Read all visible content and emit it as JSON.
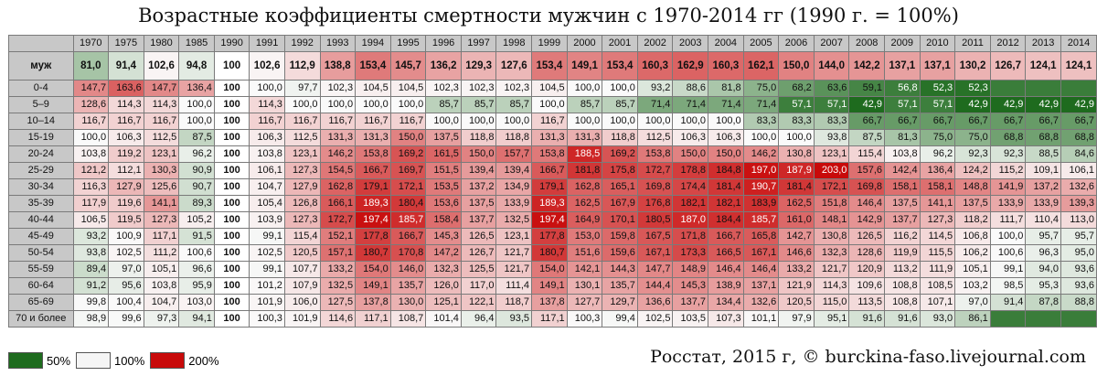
{
  "title": "Возрастные коэффициенты смертности мужчин с 1970-2014 гг (1990 г. = 100%)",
  "source": "Росстат, 2015 г, © burckina-faso.livejournal.com",
  "legend": [
    {
      "label": "50%",
      "color": "#1e6b1e"
    },
    {
      "label": "100%",
      "color": "#f5f5f5"
    },
    {
      "label": "200%",
      "color": "#c80a0a"
    }
  ],
  "chart_data": {
    "type": "heatmap",
    "title": "Возрастные коэффициенты смертности мужчин с 1970-2014 гг (1990 г. = 100%)",
    "color_scale": {
      "low": 50,
      "mid": 100,
      "high": 200
    },
    "years": [
      "1970",
      "1975",
      "1980",
      "1985",
      "1990",
      "1991",
      "1992",
      "1993",
      "1994",
      "1995",
      "1996",
      "1997",
      "1998",
      "1999",
      "2000",
      "2001",
      "2002",
      "2003",
      "2004",
      "2005",
      "2006",
      "2007",
      "2008",
      "2009",
      "2010",
      "2011",
      "2012",
      "2013",
      "2014"
    ],
    "total": {
      "label": "муж",
      "values": [
        "81,0",
        "91,4",
        "102,6",
        "94,8",
        "100",
        "102,6",
        "112,9",
        "138,8",
        "153,4",
        "145,7",
        "136,2",
        "129,3",
        "127,6",
        "153,4",
        "149,1",
        "153,4",
        "160,3",
        "162,9",
        "160,3",
        "162,1",
        "150,0",
        "144,0",
        "142,2",
        "137,1",
        "137,1",
        "130,2",
        "126,7",
        "124,1",
        "124,1"
      ]
    },
    "rows": [
      {
        "label": "0-4",
        "values": [
          "147,7",
          "163,6",
          "147,7",
          "136,4",
          "100",
          "100,0",
          "97,7",
          "102,3",
          "104,5",
          "104,5",
          "102,3",
          "102,3",
          "102,3",
          "104,5",
          "100,0",
          "100,0",
          "93,2",
          "88,6",
          "81,8",
          "75,0",
          "68,2",
          "63,6",
          "59,1",
          "56,8",
          "52,3",
          "52,3",
          "",
          "",
          ""
        ]
      },
      {
        "label": "5–9",
        "values": [
          "128,6",
          "114,3",
          "114,3",
          "100,0",
          "100",
          "114,3",
          "100,0",
          "100,0",
          "100,0",
          "100,0",
          "85,7",
          "85,7",
          "85,7",
          "100,0",
          "85,7",
          "85,7",
          "71,4",
          "71,4",
          "71,4",
          "71,4",
          "57,1",
          "57,1",
          "42,9",
          "57,1",
          "57,1",
          "42,9",
          "42,9",
          "42,9",
          "42,9"
        ]
      },
      {
        "label": "10–14",
        "values": [
          "116,7",
          "116,7",
          "116,7",
          "100,0",
          "100",
          "116,7",
          "116,7",
          "116,7",
          "116,7",
          "116,7",
          "100,0",
          "100,0",
          "100,0",
          "116,7",
          "100,0",
          "100,0",
          "100,0",
          "100,0",
          "100,0",
          "83,3",
          "83,3",
          "83,3",
          "66,7",
          "66,7",
          "66,7",
          "66,7",
          "66,7",
          "66,7",
          "66,7"
        ]
      },
      {
        "label": "15-19",
        "values": [
          "100,0",
          "106,3",
          "112,5",
          "87,5",
          "100",
          "106,3",
          "112,5",
          "131,3",
          "131,3",
          "150,0",
          "137,5",
          "118,8",
          "118,8",
          "131,3",
          "131,3",
          "118,8",
          "112,5",
          "106,3",
          "106,3",
          "100,0",
          "100,0",
          "93,8",
          "87,5",
          "81,3",
          "75,0",
          "75,0",
          "68,8",
          "68,8",
          "68,8"
        ]
      },
      {
        "label": "20-24",
        "values": [
          "103,8",
          "119,2",
          "123,1",
          "96,2",
          "100",
          "103,8",
          "123,1",
          "146,2",
          "153,8",
          "169,2",
          "161,5",
          "150,0",
          "157,7",
          "153,8",
          "188,5",
          "169,2",
          "153,8",
          "150,0",
          "150,0",
          "146,2",
          "130,8",
          "123,1",
          "115,4",
          "103,8",
          "96,2",
          "92,3",
          "92,3",
          "88,5",
          "84,6"
        ]
      },
      {
        "label": "25-29",
        "values": [
          "121,2",
          "112,1",
          "130,3",
          "90,9",
          "100",
          "106,1",
          "127,3",
          "154,5",
          "166,7",
          "169,7",
          "151,5",
          "139,4",
          "139,4",
          "166,7",
          "181,8",
          "175,8",
          "172,7",
          "178,8",
          "184,8",
          "197,0",
          "187,9",
          "203,0",
          "157,6",
          "142,4",
          "136,4",
          "124,2",
          "115,2",
          "109,1",
          "106,1"
        ]
      },
      {
        "label": "30-34",
        "values": [
          "116,3",
          "127,9",
          "125,6",
          "90,7",
          "100",
          "104,7",
          "127,9",
          "162,8",
          "179,1",
          "172,1",
          "153,5",
          "137,2",
          "134,9",
          "179,1",
          "162,8",
          "165,1",
          "169,8",
          "174,4",
          "181,4",
          "190,7",
          "181,4",
          "172,1",
          "169,8",
          "158,1",
          "158,1",
          "148,8",
          "141,9",
          "137,2",
          "132,6"
        ]
      },
      {
        "label": "35-39",
        "values": [
          "117,9",
          "119,6",
          "141,1",
          "89,3",
          "100",
          "105,4",
          "126,8",
          "166,1",
          "189,3",
          "180,4",
          "153,6",
          "137,5",
          "133,9",
          "189,3",
          "162,5",
          "167,9",
          "176,8",
          "182,1",
          "182,1",
          "183,9",
          "162,5",
          "151,8",
          "146,4",
          "137,5",
          "141,1",
          "137,5",
          "133,9",
          "133,9",
          "139,3"
        ]
      },
      {
        "label": "40-44",
        "values": [
          "106,5",
          "119,5",
          "127,3",
          "105,2",
          "100",
          "103,9",
          "127,3",
          "172,7",
          "197,4",
          "185,7",
          "158,4",
          "137,7",
          "132,5",
          "197,4",
          "164,9",
          "170,1",
          "180,5",
          "187,0",
          "184,4",
          "185,7",
          "161,0",
          "148,1",
          "142,9",
          "137,7",
          "127,3",
          "118,2",
          "111,7",
          "110,4",
          "113,0"
        ]
      },
      {
        "label": "45-49",
        "values": [
          "93,2",
          "100,9",
          "117,1",
          "91,5",
          "100",
          "99,1",
          "115,4",
          "152,1",
          "177,8",
          "166,7",
          "145,3",
          "126,5",
          "123,1",
          "177,8",
          "153,0",
          "159,8",
          "167,5",
          "171,8",
          "166,7",
          "165,8",
          "142,7",
          "130,8",
          "126,5",
          "116,2",
          "114,5",
          "106,8",
          "100,0",
          "95,7",
          "95,7"
        ]
      },
      {
        "label": "50-54",
        "values": [
          "93,8",
          "102,5",
          "111,2",
          "100,6",
          "100",
          "102,5",
          "120,5",
          "157,1",
          "180,7",
          "170,8",
          "147,2",
          "126,7",
          "121,7",
          "180,7",
          "151,6",
          "159,6",
          "167,1",
          "173,3",
          "166,5",
          "167,1",
          "146,6",
          "132,3",
          "128,6",
          "119,9",
          "115,5",
          "106,2",
          "100,6",
          "96,3",
          "95,0"
        ]
      },
      {
        "label": "55-59",
        "values": [
          "89,4",
          "97,0",
          "105,1",
          "96,6",
          "100",
          "99,1",
          "107,7",
          "133,2",
          "154,0",
          "146,0",
          "132,3",
          "125,5",
          "121,7",
          "154,0",
          "142,1",
          "144,3",
          "147,7",
          "148,9",
          "146,4",
          "146,4",
          "133,2",
          "121,7",
          "120,9",
          "113,2",
          "111,9",
          "105,1",
          "99,1",
          "94,0",
          "93,6"
        ]
      },
      {
        "label": "60-64",
        "values": [
          "91,2",
          "95,6",
          "103,8",
          "95,9",
          "100",
          "101,2",
          "107,9",
          "132,5",
          "149,1",
          "135,7",
          "126,0",
          "117,0",
          "111,4",
          "149,1",
          "130,1",
          "135,7",
          "144,4",
          "145,3",
          "138,9",
          "137,1",
          "121,9",
          "114,3",
          "109,6",
          "108,8",
          "108,5",
          "103,2",
          "98,5",
          "95,3",
          "93,6"
        ]
      },
      {
        "label": "65-69",
        "values": [
          "99,8",
          "100,4",
          "104,7",
          "103,0",
          "100",
          "101,9",
          "106,0",
          "127,5",
          "137,8",
          "130,0",
          "125,1",
          "122,1",
          "118,7",
          "137,8",
          "127,7",
          "129,7",
          "136,6",
          "137,7",
          "134,4",
          "132,6",
          "120,5",
          "115,0",
          "113,5",
          "108,8",
          "107,1",
          "97,0",
          "91,4",
          "87,8",
          "88,8"
        ]
      },
      {
        "label": "70 и более",
        "values": [
          "98,9",
          "99,6",
          "97,3",
          "94,1",
          "100",
          "100,3",
          "101,9",
          "114,6",
          "117,1",
          "108,7",
          "101,4",
          "96,4",
          "93,5",
          "117,1",
          "100,3",
          "99,4",
          "102,5",
          "103,5",
          "107,3",
          "101,1",
          "97,9",
          "95,1",
          "91,6",
          "91,6",
          "93,0",
          "86,1",
          "",
          "",
          ""
        ]
      }
    ]
  }
}
